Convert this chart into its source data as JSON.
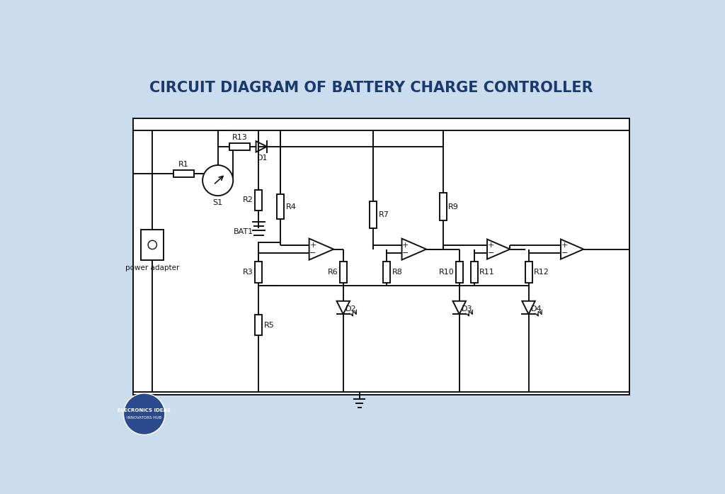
{
  "title": "CIRCUIT DIAGRAM OF BATTERY CHARGE CONTROLLER",
  "title_color": "#1a3a6b",
  "bg_color": "#ccdcef",
  "line_color": "#111111",
  "line_width": 1.4,
  "logo_color": "#2b4a8c",
  "logo_text1": "ELECRONICS IDEAS",
  "logo_text2": "INNOVATORS HUB"
}
